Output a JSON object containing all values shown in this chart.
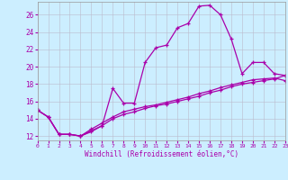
{
  "xlabel": "Windchill (Refroidissement éolien,°C)",
  "bg_color": "#cceeff",
  "line_color": "#aa00aa",
  "grid_color": "#bbbbcc",
  "x_ticks": [
    0,
    1,
    2,
    3,
    4,
    5,
    6,
    7,
    8,
    9,
    10,
    11,
    12,
    13,
    14,
    15,
    16,
    17,
    18,
    19,
    20,
    21,
    22,
    23
  ],
  "y_ticks": [
    12,
    14,
    16,
    18,
    20,
    22,
    24,
    26
  ],
  "xlim": [
    0,
    23
  ],
  "ylim": [
    11.5,
    27.5
  ],
  "series1_x": [
    0,
    1,
    2,
    3,
    4,
    5,
    6,
    7,
    8,
    9,
    10,
    11,
    12,
    13,
    14,
    15,
    16,
    17,
    18,
    19,
    20,
    21,
    22,
    23
  ],
  "series1_y": [
    15.0,
    14.2,
    12.2,
    12.2,
    12.0,
    12.5,
    13.2,
    17.5,
    15.8,
    15.8,
    20.5,
    22.2,
    22.5,
    24.5,
    25.0,
    27.0,
    27.1,
    26.0,
    23.2,
    19.2,
    20.5,
    20.5,
    19.2,
    19.0
  ],
  "series2_x": [
    0,
    1,
    2,
    3,
    4,
    5,
    6,
    7,
    8,
    9,
    10,
    11,
    12,
    13,
    14,
    15,
    16,
    17,
    18,
    19,
    20,
    21,
    22,
    23
  ],
  "series2_y": [
    15.0,
    14.2,
    12.2,
    12.2,
    12.0,
    12.8,
    13.5,
    14.2,
    14.8,
    15.1,
    15.4,
    15.6,
    15.9,
    16.2,
    16.5,
    16.9,
    17.2,
    17.6,
    17.9,
    18.2,
    18.5,
    18.6,
    18.7,
    18.4
  ],
  "series3_x": [
    0,
    1,
    2,
    3,
    4,
    5,
    6,
    7,
    8,
    9,
    10,
    11,
    12,
    13,
    14,
    15,
    16,
    17,
    18,
    19,
    20,
    21,
    22,
    23
  ],
  "series3_y": [
    15.0,
    14.2,
    12.2,
    12.2,
    12.0,
    12.6,
    13.2,
    14.0,
    14.5,
    14.8,
    15.2,
    15.5,
    15.7,
    16.0,
    16.3,
    16.6,
    17.0,
    17.3,
    17.7,
    18.0,
    18.2,
    18.4,
    18.6,
    19.0
  ]
}
